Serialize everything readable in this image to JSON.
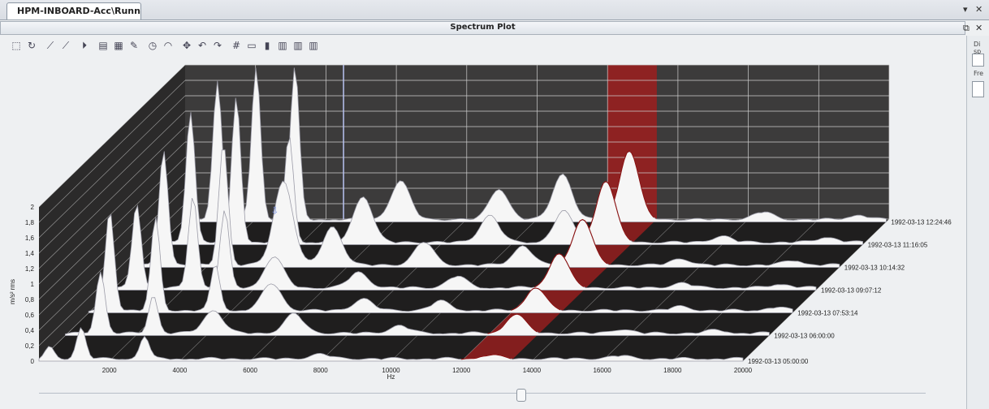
{
  "tab": {
    "label": "HPM-INBOARD-Acc\\Running\\..."
  },
  "window": {
    "title": "Spectrum Plot"
  },
  "controls": {
    "dropdown_glyph": "▾",
    "close_glyph": "✕",
    "restore_glyph": "⧉"
  },
  "side_panel": {
    "label1": "Di sp",
    "label2": "Fre"
  },
  "toolbar": [
    {
      "name": "zoom-select-icon",
      "glyph": "⬚"
    },
    {
      "name": "reset-zoom-icon",
      "glyph": "↻"
    },
    {
      "name": "line-cursor-icon",
      "glyph": "⟋"
    },
    {
      "name": "slope-icon",
      "glyph": "⟋"
    },
    {
      "name": "play-icon",
      "glyph": "⏵"
    },
    {
      "name": "area-chart-icon",
      "glyph": "▤"
    },
    {
      "name": "export-icon",
      "glyph": "▦"
    },
    {
      "name": "edit-chart-icon",
      "glyph": "✎"
    },
    {
      "name": "clock-icon",
      "glyph": "◷"
    },
    {
      "name": "rotate-icon",
      "glyph": "◠"
    },
    {
      "name": "pan-icon",
      "glyph": "✥"
    },
    {
      "name": "rotate-left-icon",
      "glyph": "↶"
    },
    {
      "name": "rotate-right-icon",
      "glyph": "↷"
    },
    {
      "name": "grid-icon",
      "glyph": "#"
    },
    {
      "name": "table-icon",
      "glyph": "▭"
    },
    {
      "name": "bar-highlight-icon",
      "glyph": "▮"
    },
    {
      "name": "bars-icon",
      "glyph": "▥"
    },
    {
      "name": "bars2-icon",
      "glyph": "▥"
    },
    {
      "name": "bars3-icon",
      "glyph": "▥"
    }
  ],
  "colors": {
    "panel_dark": "#3c3b3b",
    "panel_side": "#2b2a2a",
    "panel_floor": "#1f1e1e",
    "grid": "#cfcfcf",
    "spectrum_fill": "#f6f6f6",
    "spectrum_stroke": "#9c9ca8",
    "band": "#9c1e1e"
  },
  "chart_data": {
    "type": "waterfall-spectrum",
    "xlabel": "Hz",
    "ylabel": "m/s² rms",
    "x_ticks": [
      "2000",
      "4000",
      "6000",
      "8000",
      "10000",
      "12000",
      "14000",
      "16000",
      "18000",
      "20000"
    ],
    "y_ticks": [
      "0",
      "0,2",
      "0,4",
      "0,6",
      "0,8",
      "1",
      "1,2",
      "1,4",
      "1,6",
      "1,8",
      "2"
    ],
    "xlim": [
      0,
      20000
    ],
    "ylim": [
      0,
      2
    ],
    "highlight_band_hz": [
      12000,
      13400
    ],
    "series": [
      {
        "name": "1992-03-13 05:00:00",
        "peaks": [
          [
            300,
            0.15
          ],
          [
            1200,
            0.4
          ],
          [
            3000,
            0.3
          ],
          [
            8000,
            0.06
          ],
          [
            12800,
            0.05
          ],
          [
            16500,
            0.04
          ]
        ]
      },
      {
        "name": "1992-03-13 06:00:00",
        "peaks": [
          [
            1000,
            0.8
          ],
          [
            2500,
            0.5
          ],
          [
            4200,
            0.3
          ],
          [
            6500,
            0.25
          ],
          [
            9500,
            0.1
          ],
          [
            12800,
            0.25
          ],
          [
            15800,
            0.05
          ],
          [
            18500,
            0.04
          ]
        ]
      },
      {
        "name": "1992-03-13 07:53:14",
        "peaks": [
          [
            600,
            1.3
          ],
          [
            1900,
            1.2
          ],
          [
            3600,
            0.6
          ],
          [
            5200,
            0.35
          ],
          [
            7800,
            0.15
          ],
          [
            10000,
            0.12
          ],
          [
            12700,
            0.3
          ],
          [
            16800,
            0.05
          ],
          [
            19500,
            0.04
          ]
        ]
      },
      {
        "name": "1992-03-13 09:07:12",
        "peaks": [
          [
            700,
            1.1
          ],
          [
            2300,
            1.2
          ],
          [
            3200,
            1.0
          ],
          [
            4600,
            0.4
          ],
          [
            7000,
            0.2
          ],
          [
            9800,
            0.15
          ],
          [
            12700,
            0.45
          ],
          [
            16200,
            0.06
          ],
          [
            19000,
            0.05
          ]
        ]
      },
      {
        "name": "1992-03-13 10:14:32",
        "peaks": [
          [
            800,
            1.5
          ],
          [
            2500,
            1.6
          ],
          [
            4200,
            1.1
          ],
          [
            5600,
            0.5
          ],
          [
            8200,
            0.3
          ],
          [
            11000,
            0.25
          ],
          [
            12700,
            0.6
          ],
          [
            15500,
            0.08
          ],
          [
            18700,
            0.06
          ]
        ]
      },
      {
        "name": "1992-03-13 11:16:05",
        "peaks": [
          [
            900,
            1.7
          ],
          [
            2200,
            1.9
          ],
          [
            3700,
            1.4
          ],
          [
            5800,
            0.6
          ],
          [
            9400,
            0.35
          ],
          [
            11500,
            0.4
          ],
          [
            12700,
            0.8
          ],
          [
            16000,
            0.08
          ],
          [
            19000,
            0.07
          ]
        ]
      },
      {
        "name": "1992-03-13 12:24:46",
        "peaks": [
          [
            1000,
            1.8
          ],
          [
            2100,
            2.0
          ],
          [
            3200,
            2.0
          ],
          [
            6200,
            0.5
          ],
          [
            9000,
            0.4
          ],
          [
            10800,
            0.6
          ],
          [
            12700,
            0.9
          ],
          [
            16500,
            0.1
          ],
          [
            19200,
            0.06
          ]
        ]
      }
    ]
  },
  "plot_extras": {
    "marker_glyph": "⇩"
  }
}
